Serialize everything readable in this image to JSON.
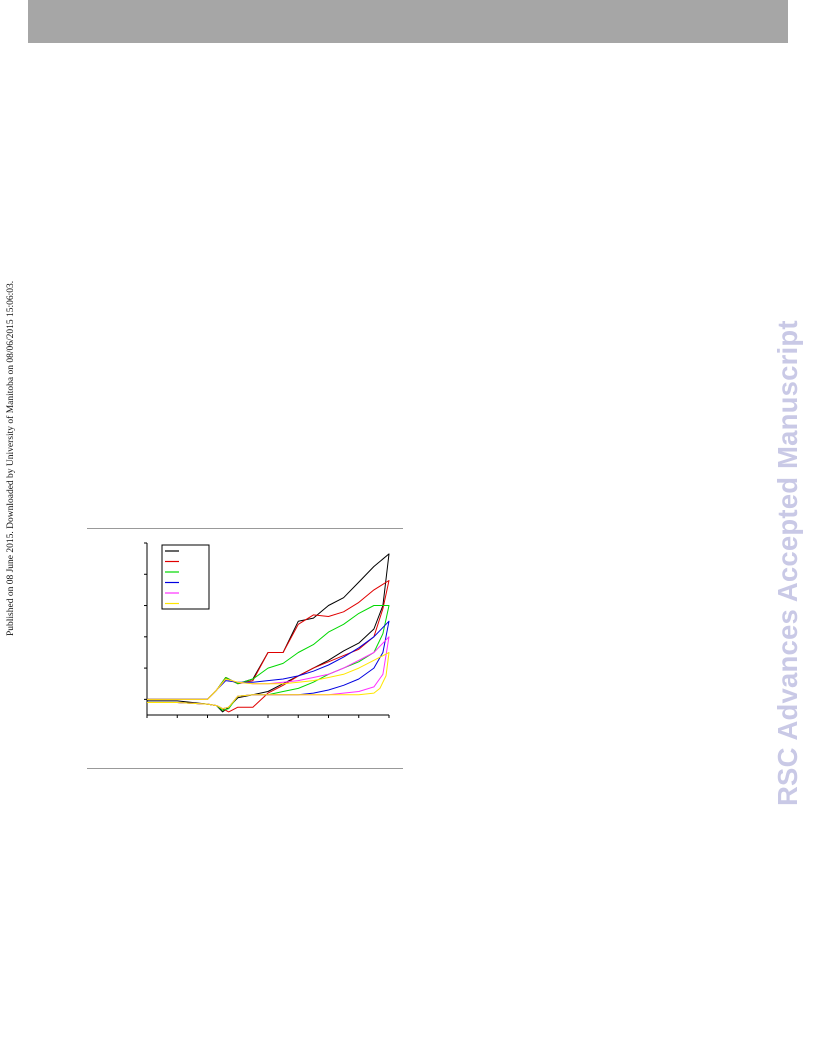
{
  "header": {
    "color": "#a6a6a6"
  },
  "side_note": {
    "text": "Published on 08 June 2015. Downloaded by University of Manitoba on 08/06/2015 15:06:03."
  },
  "watermark": {
    "text": "RSC Advances Accepted Manuscript",
    "color": "#c9c9e6"
  },
  "chart_data": {
    "type": "line",
    "xlim": [
      0,
      8
    ],
    "ylim": [
      -1,
      10
    ],
    "x_ticks": [
      0,
      1,
      2,
      3,
      4,
      5,
      6,
      7,
      8
    ],
    "y_ticks": [
      0,
      2,
      4,
      6,
      8,
      10
    ],
    "grid": false,
    "legend_placement": "top-left",
    "series": [
      {
        "color": "#000000",
        "forward": [
          [
            0,
            0
          ],
          [
            2,
            0
          ],
          [
            2.3,
            0.6
          ],
          [
            2.6,
            1.4
          ],
          [
            3,
            1
          ],
          [
            3.5,
            1.3
          ],
          [
            4,
            3
          ],
          [
            4.5,
            3
          ],
          [
            5,
            5
          ],
          [
            5.5,
            5.2
          ],
          [
            6,
            6
          ],
          [
            6.5,
            6.5
          ],
          [
            7,
            7.5
          ],
          [
            7.5,
            8.5
          ],
          [
            8,
            9.3
          ]
        ],
        "reverse": [
          [
            8,
            9.3
          ],
          [
            7.8,
            6
          ],
          [
            7.5,
            4.5
          ],
          [
            7,
            3.6
          ],
          [
            6.5,
            3.1
          ],
          [
            6,
            2.5
          ],
          [
            5.5,
            2
          ],
          [
            5,
            1.5
          ],
          [
            4.5,
            1
          ],
          [
            4,
            0.5
          ],
          [
            3.5,
            0.3
          ],
          [
            3,
            0.1
          ],
          [
            2.7,
            -0.5
          ],
          [
            2.5,
            -0.8
          ],
          [
            2.3,
            -0.4
          ],
          [
            2,
            -0.3
          ],
          [
            1,
            -0.1
          ],
          [
            0,
            -0.1
          ]
        ]
      },
      {
        "color": "#e00000",
        "forward": [
          [
            0,
            0
          ],
          [
            2,
            0
          ],
          [
            2.3,
            0.6
          ],
          [
            2.6,
            1.4
          ],
          [
            3,
            1
          ],
          [
            3.5,
            1.2
          ],
          [
            4,
            3
          ],
          [
            4.5,
            3
          ],
          [
            5,
            4.8
          ],
          [
            5.5,
            5.4
          ],
          [
            6,
            5.3
          ],
          [
            6.5,
            5.6
          ],
          [
            7,
            6.2
          ],
          [
            7.5,
            7
          ],
          [
            8,
            7.6
          ]
        ],
        "reverse": [
          [
            8,
            7.6
          ],
          [
            7.8,
            5.8
          ],
          [
            7.5,
            4
          ],
          [
            7,
            3.2
          ],
          [
            6.5,
            2.8
          ],
          [
            6,
            2.4
          ],
          [
            5.5,
            2
          ],
          [
            5,
            1.5
          ],
          [
            4.5,
            0.9
          ],
          [
            4,
            0.4
          ],
          [
            3.5,
            -0.5
          ],
          [
            3,
            -0.5
          ],
          [
            2.7,
            -0.8
          ],
          [
            2.5,
            -0.6
          ],
          [
            2.3,
            -0.4
          ],
          [
            2,
            -0.3
          ],
          [
            1,
            -0.2
          ],
          [
            0,
            -0.2
          ]
        ]
      },
      {
        "color": "#00d800",
        "forward": [
          [
            0,
            0
          ],
          [
            2,
            0
          ],
          [
            2.3,
            0.6
          ],
          [
            2.6,
            1.4
          ],
          [
            3,
            1
          ],
          [
            3.5,
            1.3
          ],
          [
            4,
            2
          ],
          [
            4.5,
            2.3
          ],
          [
            5,
            3
          ],
          [
            5.5,
            3.5
          ],
          [
            6,
            4.3
          ],
          [
            6.5,
            4.8
          ],
          [
            7,
            5.5
          ],
          [
            7.5,
            6
          ],
          [
            8,
            6
          ]
        ],
        "reverse": [
          [
            8,
            6
          ],
          [
            7.8,
            4.2
          ],
          [
            7.5,
            3
          ],
          [
            7,
            2.4
          ],
          [
            6.5,
            2
          ],
          [
            6,
            1.6
          ],
          [
            5.5,
            1.1
          ],
          [
            5,
            0.7
          ],
          [
            4.5,
            0.5
          ],
          [
            4,
            0.3
          ],
          [
            3.5,
            0.3
          ],
          [
            3,
            0.2
          ],
          [
            2.7,
            -0.6
          ],
          [
            2.5,
            -0.7
          ],
          [
            2.3,
            -0.4
          ],
          [
            2,
            -0.3
          ],
          [
            1,
            -0.2
          ],
          [
            0,
            -0.2
          ]
        ]
      },
      {
        "color": "#0000e0",
        "forward": [
          [
            0,
            0
          ],
          [
            2,
            0
          ],
          [
            2.3,
            0.6
          ],
          [
            2.6,
            1.2
          ],
          [
            3,
            1.1
          ],
          [
            3.5,
            1.1
          ],
          [
            4,
            1.2
          ],
          [
            4.5,
            1.3
          ],
          [
            5,
            1.5
          ],
          [
            5.5,
            1.8
          ],
          [
            6,
            2.2
          ],
          [
            6.5,
            2.7
          ],
          [
            7,
            3.3
          ],
          [
            7.5,
            4
          ],
          [
            8,
            5
          ]
        ],
        "reverse": [
          [
            8,
            5
          ],
          [
            7.8,
            3
          ],
          [
            7.5,
            2
          ],
          [
            7,
            1.3
          ],
          [
            6.5,
            0.9
          ],
          [
            6,
            0.6
          ],
          [
            5.5,
            0.4
          ],
          [
            5,
            0.3
          ],
          [
            4.5,
            0.3
          ],
          [
            4,
            0.3
          ],
          [
            3.5,
            0.3
          ],
          [
            3,
            0.2
          ],
          [
            2.7,
            -0.5
          ],
          [
            2.5,
            -0.6
          ],
          [
            2.3,
            -0.4
          ],
          [
            2,
            -0.3
          ],
          [
            1,
            -0.2
          ],
          [
            0,
            -0.2
          ]
        ]
      },
      {
        "color": "#ff30ff",
        "forward": [
          [
            0,
            0
          ],
          [
            2,
            0
          ],
          [
            2.3,
            0.6
          ],
          [
            2.6,
            1.3
          ],
          [
            3,
            1.1
          ],
          [
            3.5,
            1
          ],
          [
            4,
            1
          ],
          [
            4.5,
            1.1
          ],
          [
            5,
            1.2
          ],
          [
            5.5,
            1.4
          ],
          [
            6,
            1.6
          ],
          [
            6.5,
            2
          ],
          [
            7,
            2.5
          ],
          [
            7.5,
            3
          ],
          [
            8,
            4
          ]
        ],
        "reverse": [
          [
            8,
            4
          ],
          [
            7.8,
            1.6
          ],
          [
            7.5,
            0.8
          ],
          [
            7,
            0.5
          ],
          [
            6.5,
            0.4
          ],
          [
            6,
            0.3
          ],
          [
            5.5,
            0.3
          ],
          [
            5,
            0.3
          ],
          [
            4.5,
            0.3
          ],
          [
            4,
            0.3
          ],
          [
            3.5,
            0.3
          ],
          [
            3,
            0.2
          ],
          [
            2.7,
            -0.5
          ],
          [
            2.5,
            -0.6
          ],
          [
            2.3,
            -0.4
          ],
          [
            2,
            -0.3
          ],
          [
            1,
            -0.2
          ],
          [
            0,
            -0.2
          ]
        ]
      },
      {
        "color": "#ffe600",
        "forward": [
          [
            0,
            0
          ],
          [
            2,
            0
          ],
          [
            2.3,
            0.6
          ],
          [
            2.6,
            1.3
          ],
          [
            3,
            1.1
          ],
          [
            3.5,
            1
          ],
          [
            4,
            1
          ],
          [
            4.5,
            1
          ],
          [
            5,
            1.1
          ],
          [
            5.5,
            1.2
          ],
          [
            6,
            1.4
          ],
          [
            6.5,
            1.6
          ],
          [
            7,
            2
          ],
          [
            7.5,
            2.5
          ],
          [
            8,
            3
          ]
        ],
        "reverse": [
          [
            8,
            3
          ],
          [
            7.9,
            1.5
          ],
          [
            7.7,
            0.7
          ],
          [
            7.5,
            0.4
          ],
          [
            7,
            0.3
          ],
          [
            6,
            0.3
          ],
          [
            5,
            0.3
          ],
          [
            4,
            0.3
          ],
          [
            3.5,
            0.3
          ],
          [
            3,
            0.2
          ],
          [
            2.7,
            -0.5
          ],
          [
            2.5,
            -0.6
          ],
          [
            2.3,
            -0.4
          ],
          [
            2,
            -0.3
          ],
          [
            1,
            -0.2
          ],
          [
            0,
            -0.2
          ]
        ]
      }
    ]
  }
}
